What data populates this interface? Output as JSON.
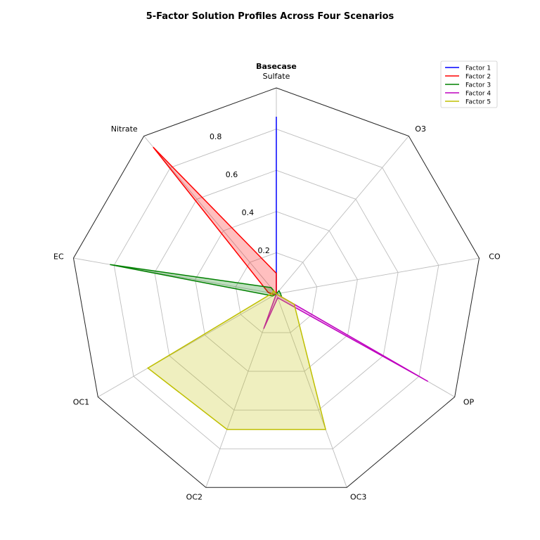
{
  "chart_data": {
    "type": "radar",
    "title": "5-Factor Solution Profiles Across Four Scenarios",
    "subplot_title": "Basecase",
    "axes": [
      "Sulfate",
      "O3",
      "CO",
      "OP",
      "OC3",
      "OC2",
      "OC1",
      "EC",
      "Nitrate"
    ],
    "rlim": [
      0,
      1.0
    ],
    "r_ticks": [
      0.2,
      0.4,
      0.6,
      0.8
    ],
    "r_tick_labels": [
      "0.2",
      "0.4",
      "0.6",
      "0.8"
    ],
    "grid": true,
    "legend_position": "top-right",
    "series": [
      {
        "name": "Factor 1",
        "color": "#0000ff",
        "values": [
          0.86,
          0.0,
          0.0,
          0.0,
          0.0,
          0.0,
          0.0,
          0.0,
          0.0
        ]
      },
      {
        "name": "Factor 2",
        "color": "#ff0000",
        "values": [
          0.1,
          0.0,
          0.0,
          0.0,
          0.0,
          0.0,
          0.01,
          0.04,
          0.93
        ]
      },
      {
        "name": "Factor 3",
        "color": "#008000",
        "values": [
          0.0,
          0.02,
          0.02,
          0.03,
          0.0,
          0.0,
          0.02,
          0.82,
          0.04
        ]
      },
      {
        "name": "Factor 4",
        "color": "#bf00bf",
        "values": [
          0.0,
          0.0,
          0.0,
          0.85,
          0.02,
          0.18,
          0.0,
          0.0,
          0.0
        ]
      },
      {
        "name": "Factor 5",
        "color": "#bfbf00",
        "values": [
          0.0,
          0.0,
          0.0,
          0.1,
          0.7,
          0.7,
          0.72,
          0.02,
          0.02
        ]
      }
    ]
  }
}
